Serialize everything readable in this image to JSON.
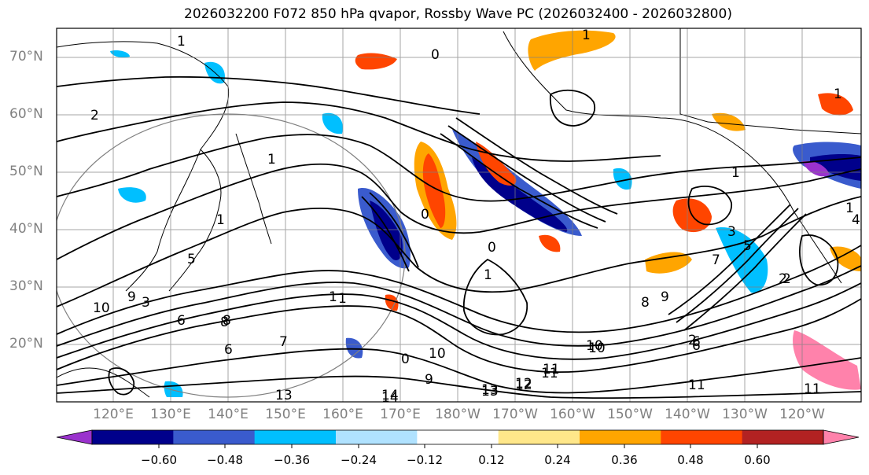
{
  "title": "2026032200 F072 850 hPa qvapor, Rossby Wave PC (2026032400 - 2026032800)",
  "lat_labels": [
    "70°N",
    "60°N",
    "50°N",
    "40°N",
    "30°N",
    "20°N"
  ],
  "lon_labels": [
    "120°E",
    "130°E",
    "140°E",
    "150°E",
    "160°E",
    "170°E",
    "180°W",
    "170°W",
    "160°W",
    "150°W",
    "140°W",
    "130°W",
    "120°W"
  ],
  "colorbar": {
    "colors": [
      "#9a32cd",
      "#00008b",
      "#3a5bcd",
      "#00bfff",
      "#b0e2ff",
      "#ffffff",
      "#ffe78a",
      "#ffa500",
      "#ff4500",
      "#b22222",
      "#ff82ab"
    ],
    "tick_labels": [
      "−0.60",
      "−0.48",
      "−0.36",
      "−0.24",
      "−0.12",
      "0.12",
      "0.24",
      "0.36",
      "0.48",
      "0.60"
    ]
  },
  "contour_labels": [
    "1",
    "2",
    "1",
    "0",
    "1",
    "1",
    "0",
    "0",
    "1",
    "0",
    "1",
    "1",
    "1",
    "1",
    "3",
    "2",
    "4",
    "2",
    "5",
    "6",
    "7",
    "8",
    "9",
    "10",
    "11",
    "12",
    "13",
    "14",
    "13",
    "11",
    "10",
    "9",
    "8",
    "6",
    "5",
    "3",
    "6",
    "2",
    "11",
    "1",
    "6",
    "7",
    "8",
    "9",
    "10",
    "11",
    "12",
    "13",
    "14",
    "10"
  ]
}
